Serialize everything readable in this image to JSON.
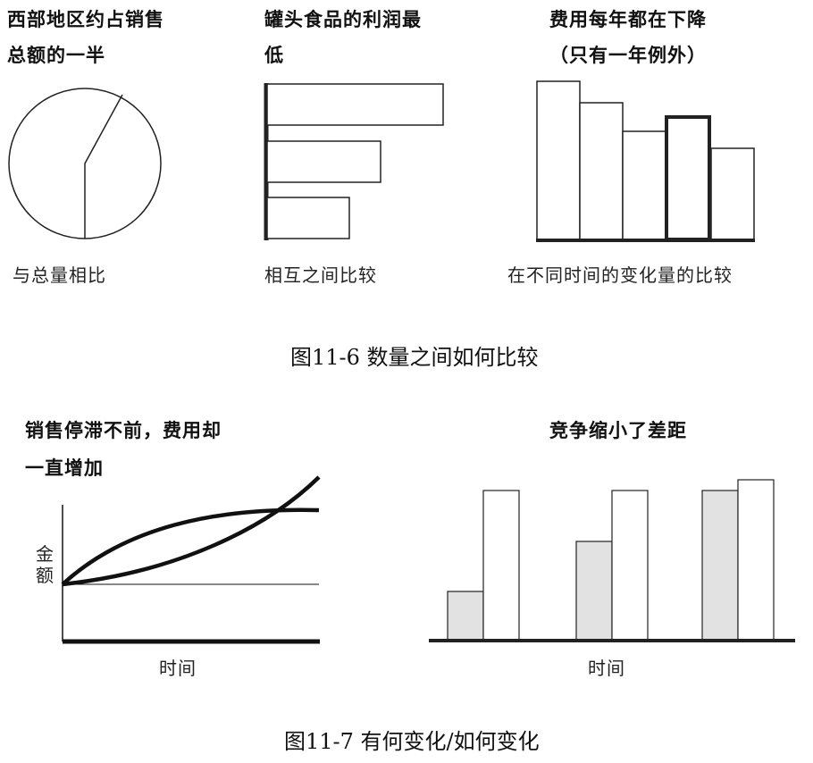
{
  "figure_11_6": {
    "pie_panel": {
      "title_line1": "西部地区约占销售",
      "title_line2": "总额的一半",
      "label": "与总量相比"
    },
    "bar_panel": {
      "title_line1": "罐头食品的利润最",
      "title_line2": "低",
      "label": "相互之间比较"
    },
    "column_panel": {
      "title_line1": "费用每年都在下降",
      "title_line2": "（只有一年例外）",
      "label": "在不同时间的变化量的比较"
    },
    "caption": "图11-6 数量之间如何比较"
  },
  "figure_11_7": {
    "line_panel": {
      "title_line1": "销售停滞不前，费用却",
      "title_line2": "一直增加",
      "ylabel": "金额",
      "xlabel": "时间"
    },
    "paired_panel": {
      "title": "竞争缩小了差距",
      "xlabel": "时间"
    },
    "caption": "图11-7 有何变化/如何变化"
  }
}
